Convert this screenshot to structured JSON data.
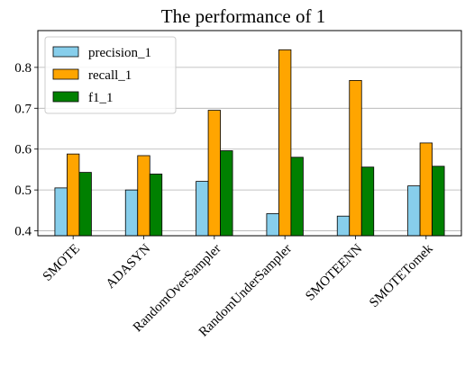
{
  "chart_data": {
    "type": "bar",
    "title": "The performance of 1",
    "xlabel": "",
    "ylabel": "",
    "categories": [
      "SMOTE",
      "ADASYN",
      "RandomOverSampler",
      "RandomUnderSampler",
      "SMOTEENN",
      "SMOTETomek"
    ],
    "series": [
      {
        "name": "precision_1",
        "color": "#87ceeb",
        "values": [
          0.505,
          0.5,
          0.521,
          0.442,
          0.436,
          0.51
        ]
      },
      {
        "name": "recall_1",
        "color": "#ffa500",
        "values": [
          0.588,
          0.584,
          0.695,
          0.843,
          0.768,
          0.615
        ]
      },
      {
        "name": "f1_1",
        "color": "#008000",
        "values": [
          0.543,
          0.539,
          0.596,
          0.58,
          0.556,
          0.558
        ]
      }
    ],
    "ylim": [
      0.388,
      0.89
    ],
    "yticks": [
      "0.4",
      "0.5",
      "0.6",
      "0.7",
      "0.8"
    ],
    "grid": "horizontal",
    "legend_position": "upper-left"
  }
}
